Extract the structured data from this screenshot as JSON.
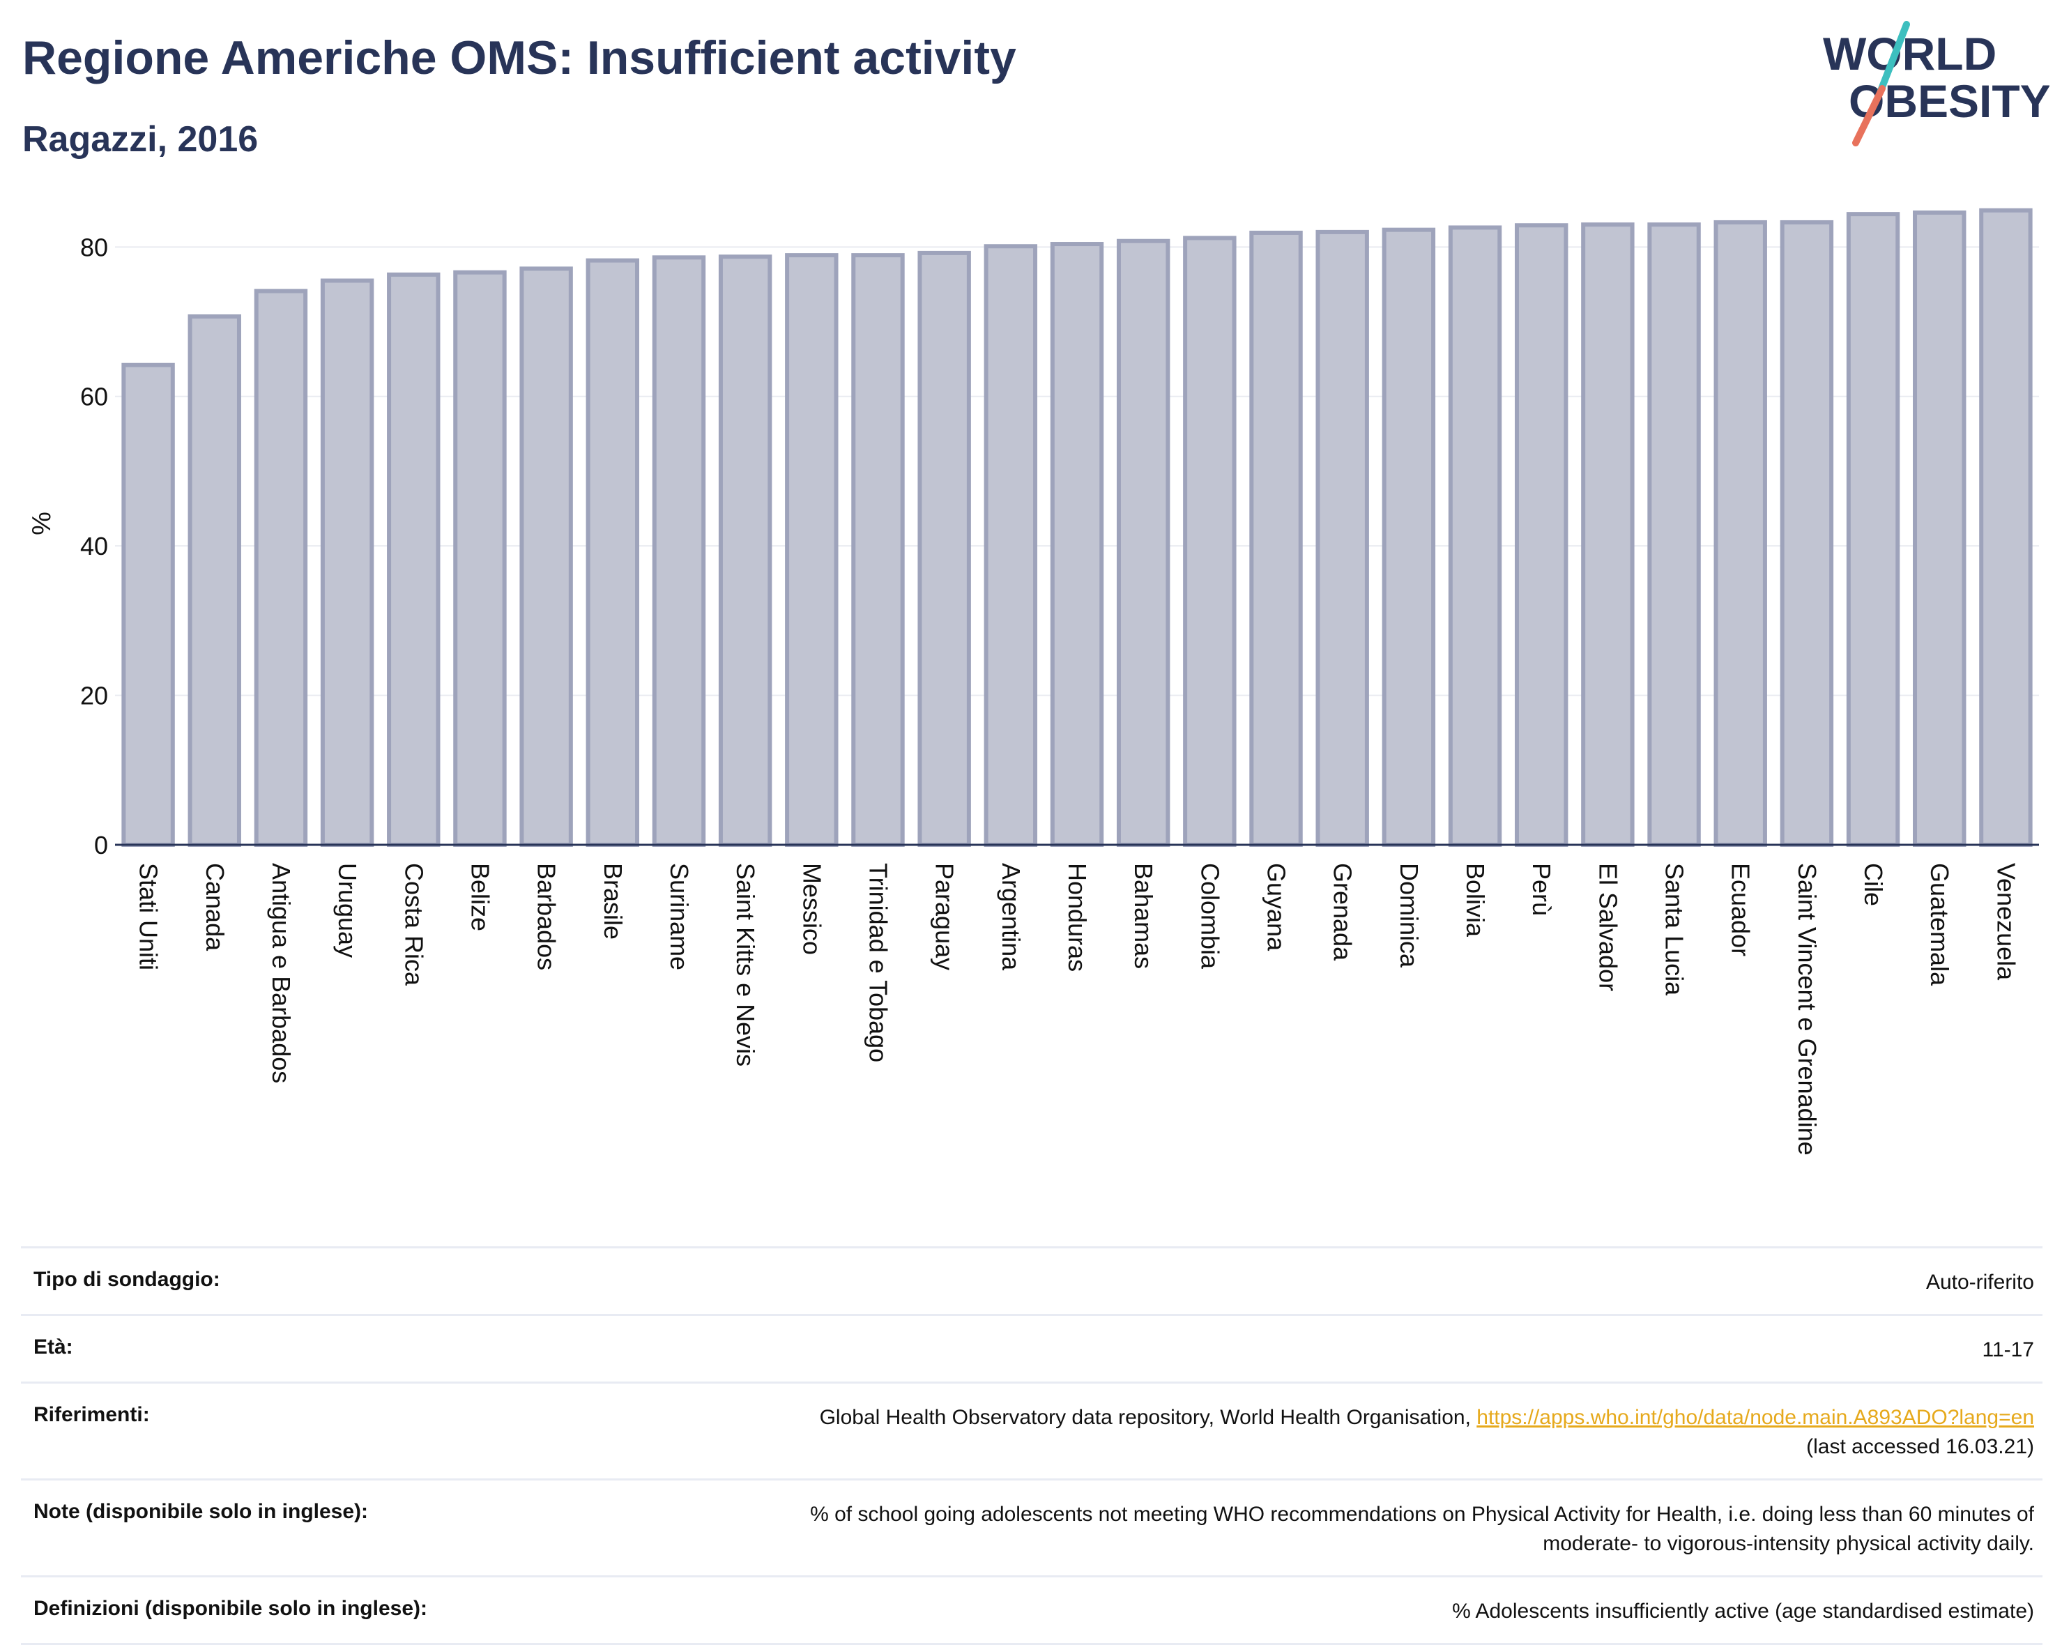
{
  "header": {
    "title": "Regione Americhe OMS: Insufficient activity",
    "subtitle": "Ragazzi, 2016"
  },
  "logo": {
    "line1": "WORLD",
    "line2": "OBESITY",
    "colors": {
      "text": "#283458",
      "slash_top": "#3dbfbf",
      "slash_bottom": "#e8725c"
    }
  },
  "chart_data": {
    "type": "bar",
    "ylabel": "%",
    "ylim": [
      0,
      86
    ],
    "yticks": [
      0,
      20,
      40,
      60,
      80
    ],
    "grid": true,
    "bar_fill": "#c1c4d2",
    "bar_stroke": "#9ea3bb",
    "categories": [
      "Stati Uniti",
      "Canada",
      "Antigua e Barbados",
      "Uruguay",
      "Costa Rica",
      "Belize",
      "Barbados",
      "Brasile",
      "Suriname",
      "Saint Kitts e Nevis",
      "Messico",
      "Trinidad e Tobago",
      "Paraguay",
      "Argentina",
      "Honduras",
      "Bahamas",
      "Colombia",
      "Guyana",
      "Grenada",
      "Dominica",
      "Bolivia",
      "Perù",
      "El Salvador",
      "Santa Lucia",
      "Ecuador",
      "Saint Vincent e Grenadine",
      "Cile",
      "Guatemala",
      "Venezuela"
    ],
    "values": [
      64.2,
      70.7,
      74.1,
      75.5,
      76.3,
      76.6,
      77.1,
      78.2,
      78.6,
      78.7,
      78.9,
      78.9,
      79.2,
      80.1,
      80.4,
      80.8,
      81.2,
      81.9,
      82.0,
      82.3,
      82.6,
      82.9,
      83.0,
      83.0,
      83.3,
      83.3,
      84.4,
      84.6,
      84.9
    ]
  },
  "meta": {
    "survey_label": "Tipo di sondaggio:",
    "survey_value": "Auto-riferito",
    "age_label": "Età:",
    "age_value": "11-17",
    "refs_label": "Riferimenti:",
    "refs_text": "Global Health Observatory data repository, World Health Organisation,",
    "refs_link": "https://apps.who.int/gho/data/node.main.A893ADO?lang=en",
    "refs_accessed": "(last accessed 16.03.21)",
    "notes_label": "Note (disponibile solo in inglese):",
    "notes_line1": "% of school going adolescents not meeting WHO recommendations on Physical Activity for Health, i.e. doing less than 60 minutes of",
    "notes_line2": "moderate- to vigorous-intensity physical activity daily.",
    "defs_label": "Definizioni (disponibile solo in inglese):",
    "defs_value": "% Adolescents insufficiently active (age standardised estimate)"
  }
}
